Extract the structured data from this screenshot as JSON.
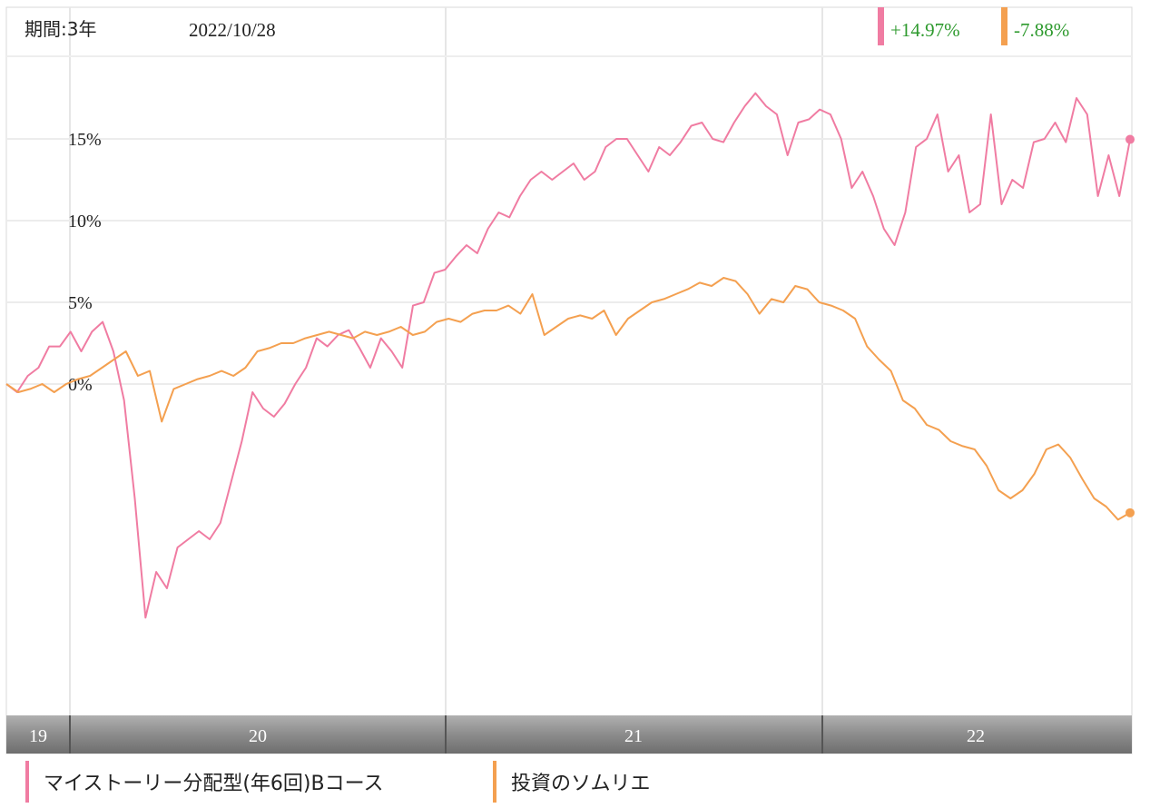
{
  "header": {
    "period_label": "期間:3年",
    "date": "2022/10/28"
  },
  "chart_data": {
    "type": "line",
    "x_labels": [
      "19",
      "20",
      "21",
      "22"
    ],
    "y_ticks": [
      "15%",
      "10%",
      "5%",
      "0%"
    ],
    "y_tick_values": [
      15,
      10,
      5,
      0
    ],
    "ylim": [
      -20,
      20
    ],
    "grid": true,
    "series": [
      {
        "name": "マイストーリー分配型(年6回)Bコース",
        "color": "#f07ca2",
        "change_label": "+14.97%",
        "values": [
          0.0,
          -0.5,
          0.5,
          1.0,
          2.3,
          2.3,
          3.2,
          2.0,
          3.2,
          3.8,
          2.0,
          -1.0,
          -7.0,
          -14.3,
          -11.5,
          -12.5,
          -10.0,
          -9.5,
          -9.0,
          -9.5,
          -8.5,
          -6.0,
          -3.5,
          -0.5,
          -1.5,
          -2.0,
          -1.2,
          0.0,
          1.0,
          2.8,
          2.3,
          3.0,
          3.3,
          2.2,
          1.0,
          2.8,
          2.0,
          1.0,
          4.8,
          5.0,
          6.8,
          7.0,
          7.8,
          8.5,
          8.0,
          9.5,
          10.5,
          10.2,
          11.5,
          12.5,
          13.0,
          12.5,
          13.0,
          13.5,
          12.5,
          13.0,
          14.5,
          15.0,
          15.0,
          14.0,
          13.0,
          14.5,
          14.0,
          14.8,
          15.8,
          16.0,
          15.0,
          14.8,
          16.0,
          17.0,
          17.8,
          17.0,
          16.5,
          14.0,
          16.0,
          16.2,
          16.8,
          16.5,
          15.0,
          12.0,
          13.0,
          11.5,
          9.5,
          8.5,
          10.5,
          14.5,
          15.0,
          16.5,
          13.0,
          14.0,
          10.5,
          11.0,
          16.5,
          11.0,
          12.5,
          12.0,
          14.8,
          15.0,
          16.0,
          14.8,
          17.5,
          16.5,
          11.5,
          14.0,
          11.5,
          14.97
        ],
        "point_color": "#f07ca2"
      },
      {
        "name": "投資のソムリエ",
        "color": "#f4a050",
        "change_label": "-7.88%",
        "values": [
          0.0,
          -0.5,
          -0.3,
          0.0,
          -0.5,
          0.0,
          0.3,
          0.5,
          1.0,
          1.5,
          2.0,
          0.5,
          0.8,
          -2.3,
          -0.3,
          0.0,
          0.3,
          0.5,
          0.8,
          0.5,
          1.0,
          2.0,
          2.2,
          2.5,
          2.5,
          2.8,
          3.0,
          3.2,
          3.0,
          2.8,
          3.2,
          3.0,
          3.2,
          3.5,
          3.0,
          3.2,
          3.8,
          4.0,
          3.8,
          4.3,
          4.5,
          4.5,
          4.8,
          4.3,
          5.5,
          3.0,
          3.5,
          4.0,
          4.2,
          4.0,
          4.5,
          3.0,
          4.0,
          4.5,
          5.0,
          5.2,
          5.5,
          5.8,
          6.2,
          6.0,
          6.5,
          6.3,
          5.5,
          4.3,
          5.2,
          5.0,
          6.0,
          5.8,
          5.0,
          4.8,
          4.5,
          4.0,
          2.3,
          1.5,
          0.8,
          -1.0,
          -1.5,
          -2.5,
          -2.8,
          -3.5,
          -3.8,
          -4.0,
          -5.0,
          -6.5,
          -7.0,
          -6.5,
          -5.5,
          -4.0,
          -3.7,
          -4.5,
          -5.8,
          -7.0,
          -7.5,
          -8.3,
          -7.88
        ],
        "point_color": "#f4a050"
      }
    ]
  }
}
